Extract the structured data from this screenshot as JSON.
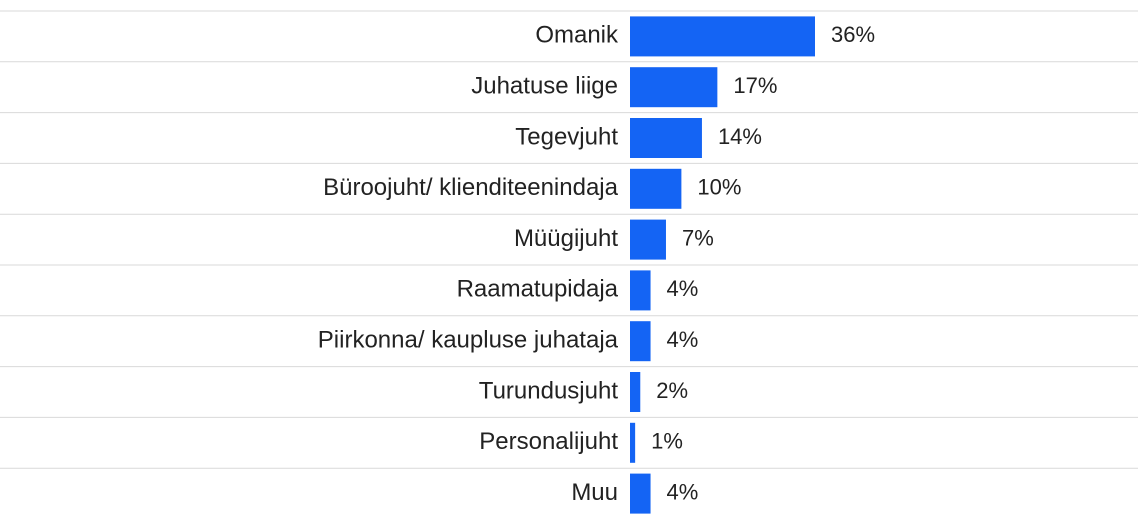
{
  "chart_data": {
    "type": "bar",
    "orientation": "horizontal",
    "categories": [
      "Omanik",
      "Juhatuse liige",
      "Tegevjuht",
      "Büroojuht/ klienditeenindaja",
      "Müügijuht",
      "Raamatupidaja",
      "Piirkonna/ kaupluse juhataja",
      "Turundusjuht",
      "Personalijuht",
      "Muu"
    ],
    "values": [
      36,
      17,
      14,
      10,
      7,
      4,
      4,
      2,
      1,
      4
    ],
    "value_labels": [
      "36%",
      "17%",
      "14%",
      "10%",
      "7%",
      "4%",
      "4%",
      "2%",
      "1%",
      "4%"
    ],
    "color": "#1464f4"
  }
}
